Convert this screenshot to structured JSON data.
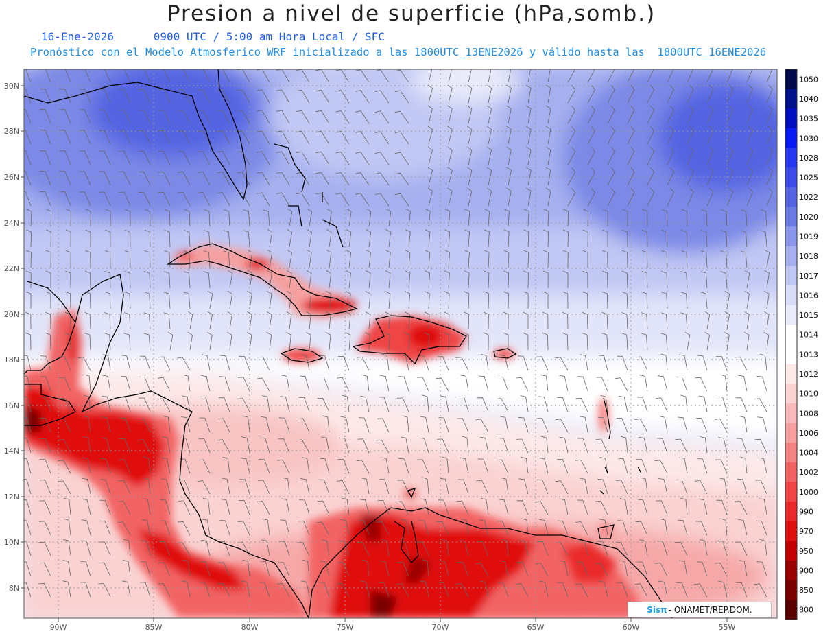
{
  "header": {
    "title": "Presion a nivel de superficie (hPa,somb.)",
    "date": "16-Ene-2026",
    "time": "0900 UTC / 5:00 am Hora Local / SFC",
    "forecast": "Pronóstico con el Modelo Atmosferico WRF inicializado a las 1800UTC_13ENE2026 y válido hasta las  1800UTC_16ENE2026"
  },
  "map": {
    "lon_labels": [
      "90W",
      "85W",
      "80W",
      "75W",
      "70W",
      "65W",
      "60W",
      "55W"
    ],
    "lat_labels": [
      "30N",
      "28N",
      "26N",
      "24N",
      "22N",
      "20N",
      "18N",
      "16N",
      "14N",
      "12N",
      "10N",
      "8N"
    ]
  },
  "colorbar": {
    "labels": [
      "1050",
      "1040",
      "1035",
      "1030",
      "1028",
      "1025",
      "1022",
      "1020",
      "1019",
      "1018",
      "1017",
      "1016",
      "1015",
      "1014",
      "1013",
      "1012",
      "1010",
      "1008",
      "1006",
      "1004",
      "1002",
      "1000",
      "990",
      "970",
      "950",
      "900",
      "850",
      "800"
    ],
    "colors": [
      "#000a4a",
      "#00128a",
      "#0010c0",
      "#0a1af5",
      "#2838f0",
      "#3c4be8",
      "#5565e2",
      "#6c7be4",
      "#8a97ea",
      "#a6b0ef",
      "#c1c8f4",
      "#d8dcf7",
      "#e9ebfa",
      "#ffffff",
      "#ffffff",
      "#fde8e8",
      "#fad2d2",
      "#f8baba",
      "#f6a0a0",
      "#f48383",
      "#f26464",
      "#ef4545",
      "#ea2a2a",
      "#e01010",
      "#c20000",
      "#9a0000",
      "#7a0000",
      "#5a0000"
    ]
  },
  "credit": {
    "logo": "Sisπ",
    "text": "- ONAMET/REP.DOM."
  }
}
